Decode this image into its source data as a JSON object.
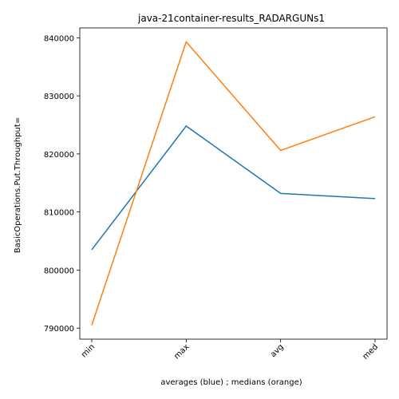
{
  "chart_data": {
    "type": "line",
    "title": "java-21container-results_RADARGUNs1",
    "xlabel": "averages (blue) ; medians (orange)",
    "ylabel": "BasicOperations.Put.Throughput=",
    "categories": [
      "min",
      "max",
      "avg",
      "med"
    ],
    "series": [
      {
        "color": "#1f77b4",
        "values": [
          803500,
          824800,
          813200,
          812300
        ]
      },
      {
        "color": "#ff7f0e",
        "values": [
          790500,
          839300,
          820600,
          826400
        ]
      }
    ],
    "yticks": [
      790000,
      800000,
      810000,
      820000,
      830000,
      840000
    ],
    "ytick_labels": [
      "790000",
      "800000",
      "810000",
      "820000",
      "830000",
      "840000"
    ],
    "ylim": [
      788100,
      841700
    ],
    "grid": false,
    "legend": "none"
  }
}
